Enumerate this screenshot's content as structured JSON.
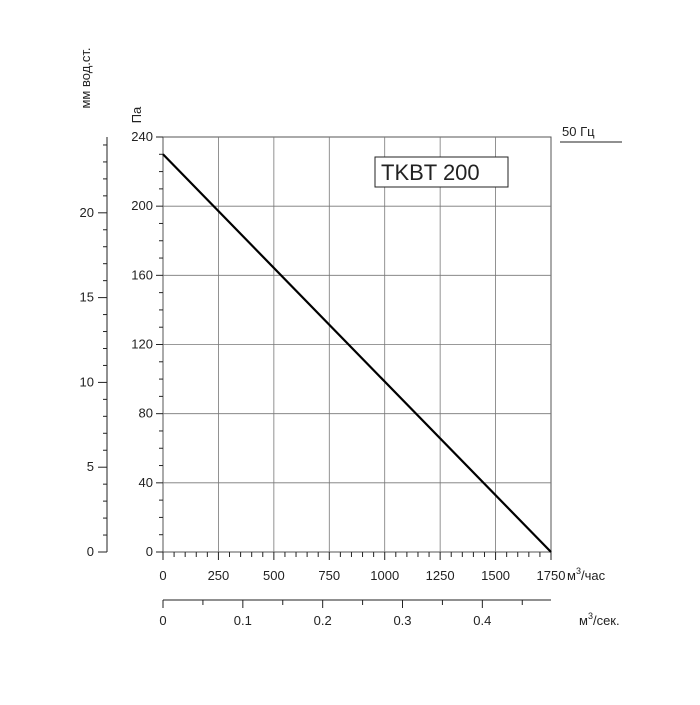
{
  "chart_data": {
    "type": "line",
    "model_label": "TKBT 200",
    "frequency_label": "50 Гц",
    "series": [
      {
        "x": [
          0,
          1750
        ],
        "y": [
          230,
          0
        ]
      }
    ],
    "x_axis": {
      "unit_base": "м",
      "unit_sup": "3",
      "unit_suffix": "/час",
      "range": [
        0,
        1750
      ],
      "ticks": [
        0,
        250,
        500,
        750,
        1000,
        1250,
        1500,
        1750
      ]
    },
    "x_axis_secondary": {
      "unit_base": "м",
      "unit_sup": "3",
      "unit_suffix": "/сек.",
      "range": [
        0,
        0.486
      ],
      "ticks": [
        "0",
        "0.1",
        "0.2",
        "0.3",
        "0.4"
      ]
    },
    "y_axis": {
      "label": "Па",
      "range": [
        0,
        240
      ],
      "ticks": [
        0,
        40,
        80,
        120,
        160,
        200,
        240
      ]
    },
    "y_axis_secondary": {
      "label": "мм вод.ст.",
      "range": [
        0,
        24.47
      ],
      "ticks": [
        0,
        5,
        10,
        15,
        20
      ]
    },
    "grid": true
  }
}
